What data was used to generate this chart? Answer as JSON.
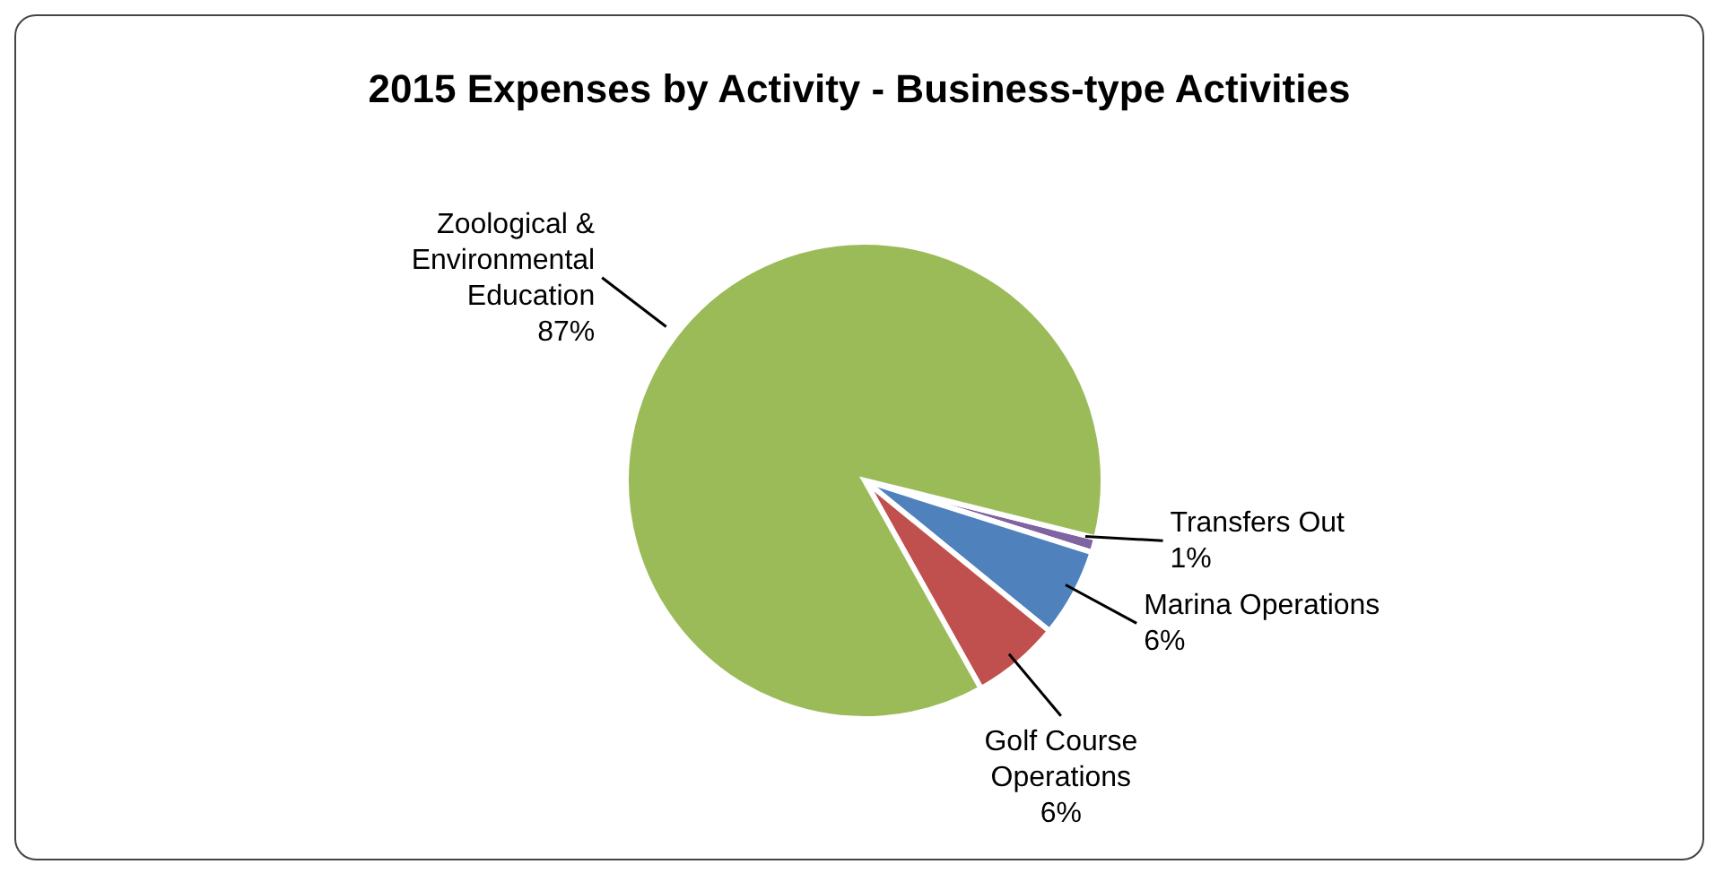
{
  "chart_data": {
    "type": "pie",
    "title": "2015 Expenses by Activity - Business-type Activities",
    "categories": [
      "Transfers Out",
      "Marina Operations",
      "Golf Course Operations",
      "Zoological & Environmental Education"
    ],
    "values": [
      1,
      6,
      6,
      87
    ],
    "colors": [
      "#8064a2",
      "#4f81bd",
      "#c0504d",
      "#9bbb59"
    ],
    "value_labels": [
      "1%",
      "6%",
      "6%",
      "87%"
    ]
  }
}
